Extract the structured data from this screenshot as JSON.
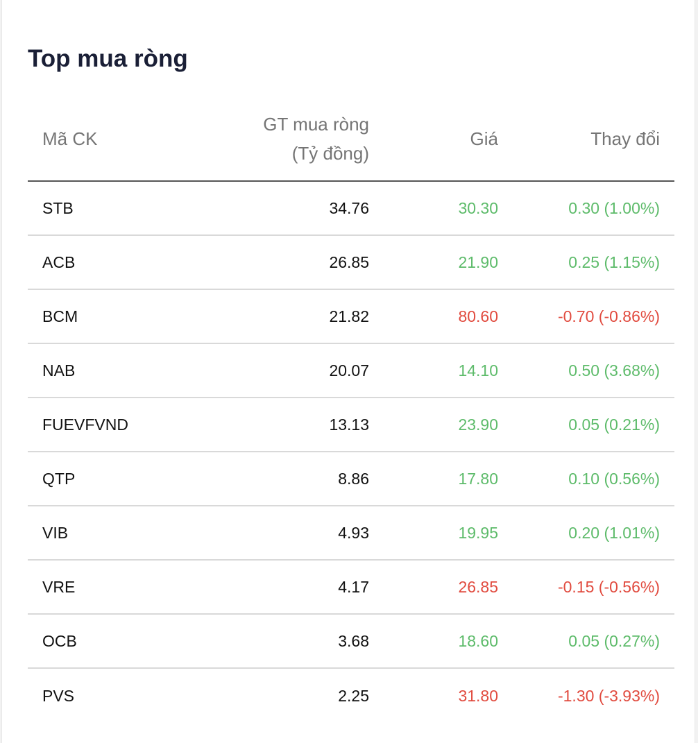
{
  "title": "Top mua ròng",
  "headers": {
    "symbol": "Mã CK",
    "net_value_line1": "GT mua ròng",
    "net_value_line2": "(Tỷ đồng)",
    "price": "Giá",
    "change": "Thay đổi"
  },
  "colors": {
    "up": "#5dbb6a",
    "down": "#e14b3f"
  },
  "rows": [
    {
      "symbol": "STB",
      "net_value": "34.76",
      "price": "30.30",
      "change": "0.30 (1.00%)",
      "direction": "up"
    },
    {
      "symbol": "ACB",
      "net_value": "26.85",
      "price": "21.90",
      "change": "0.25 (1.15%)",
      "direction": "up"
    },
    {
      "symbol": "BCM",
      "net_value": "21.82",
      "price": "80.60",
      "change": "-0.70 (-0.86%)",
      "direction": "down"
    },
    {
      "symbol": "NAB",
      "net_value": "20.07",
      "price": "14.10",
      "change": "0.50 (3.68%)",
      "direction": "up"
    },
    {
      "symbol": "FUEVFVND",
      "net_value": "13.13",
      "price": "23.90",
      "change": "0.05 (0.21%)",
      "direction": "up"
    },
    {
      "symbol": "QTP",
      "net_value": "8.86",
      "price": "17.80",
      "change": "0.10 (0.56%)",
      "direction": "up"
    },
    {
      "symbol": "VIB",
      "net_value": "4.93",
      "price": "19.95",
      "change": "0.20 (1.01%)",
      "direction": "up"
    },
    {
      "symbol": "VRE",
      "net_value": "4.17",
      "price": "26.85",
      "change": "-0.15 (-0.56%)",
      "direction": "down"
    },
    {
      "symbol": "OCB",
      "net_value": "3.68",
      "price": "18.60",
      "change": "0.05 (0.27%)",
      "direction": "up"
    },
    {
      "symbol": "PVS",
      "net_value": "2.25",
      "price": "31.80",
      "change": "-1.30 (-3.93%)",
      "direction": "down"
    }
  ]
}
